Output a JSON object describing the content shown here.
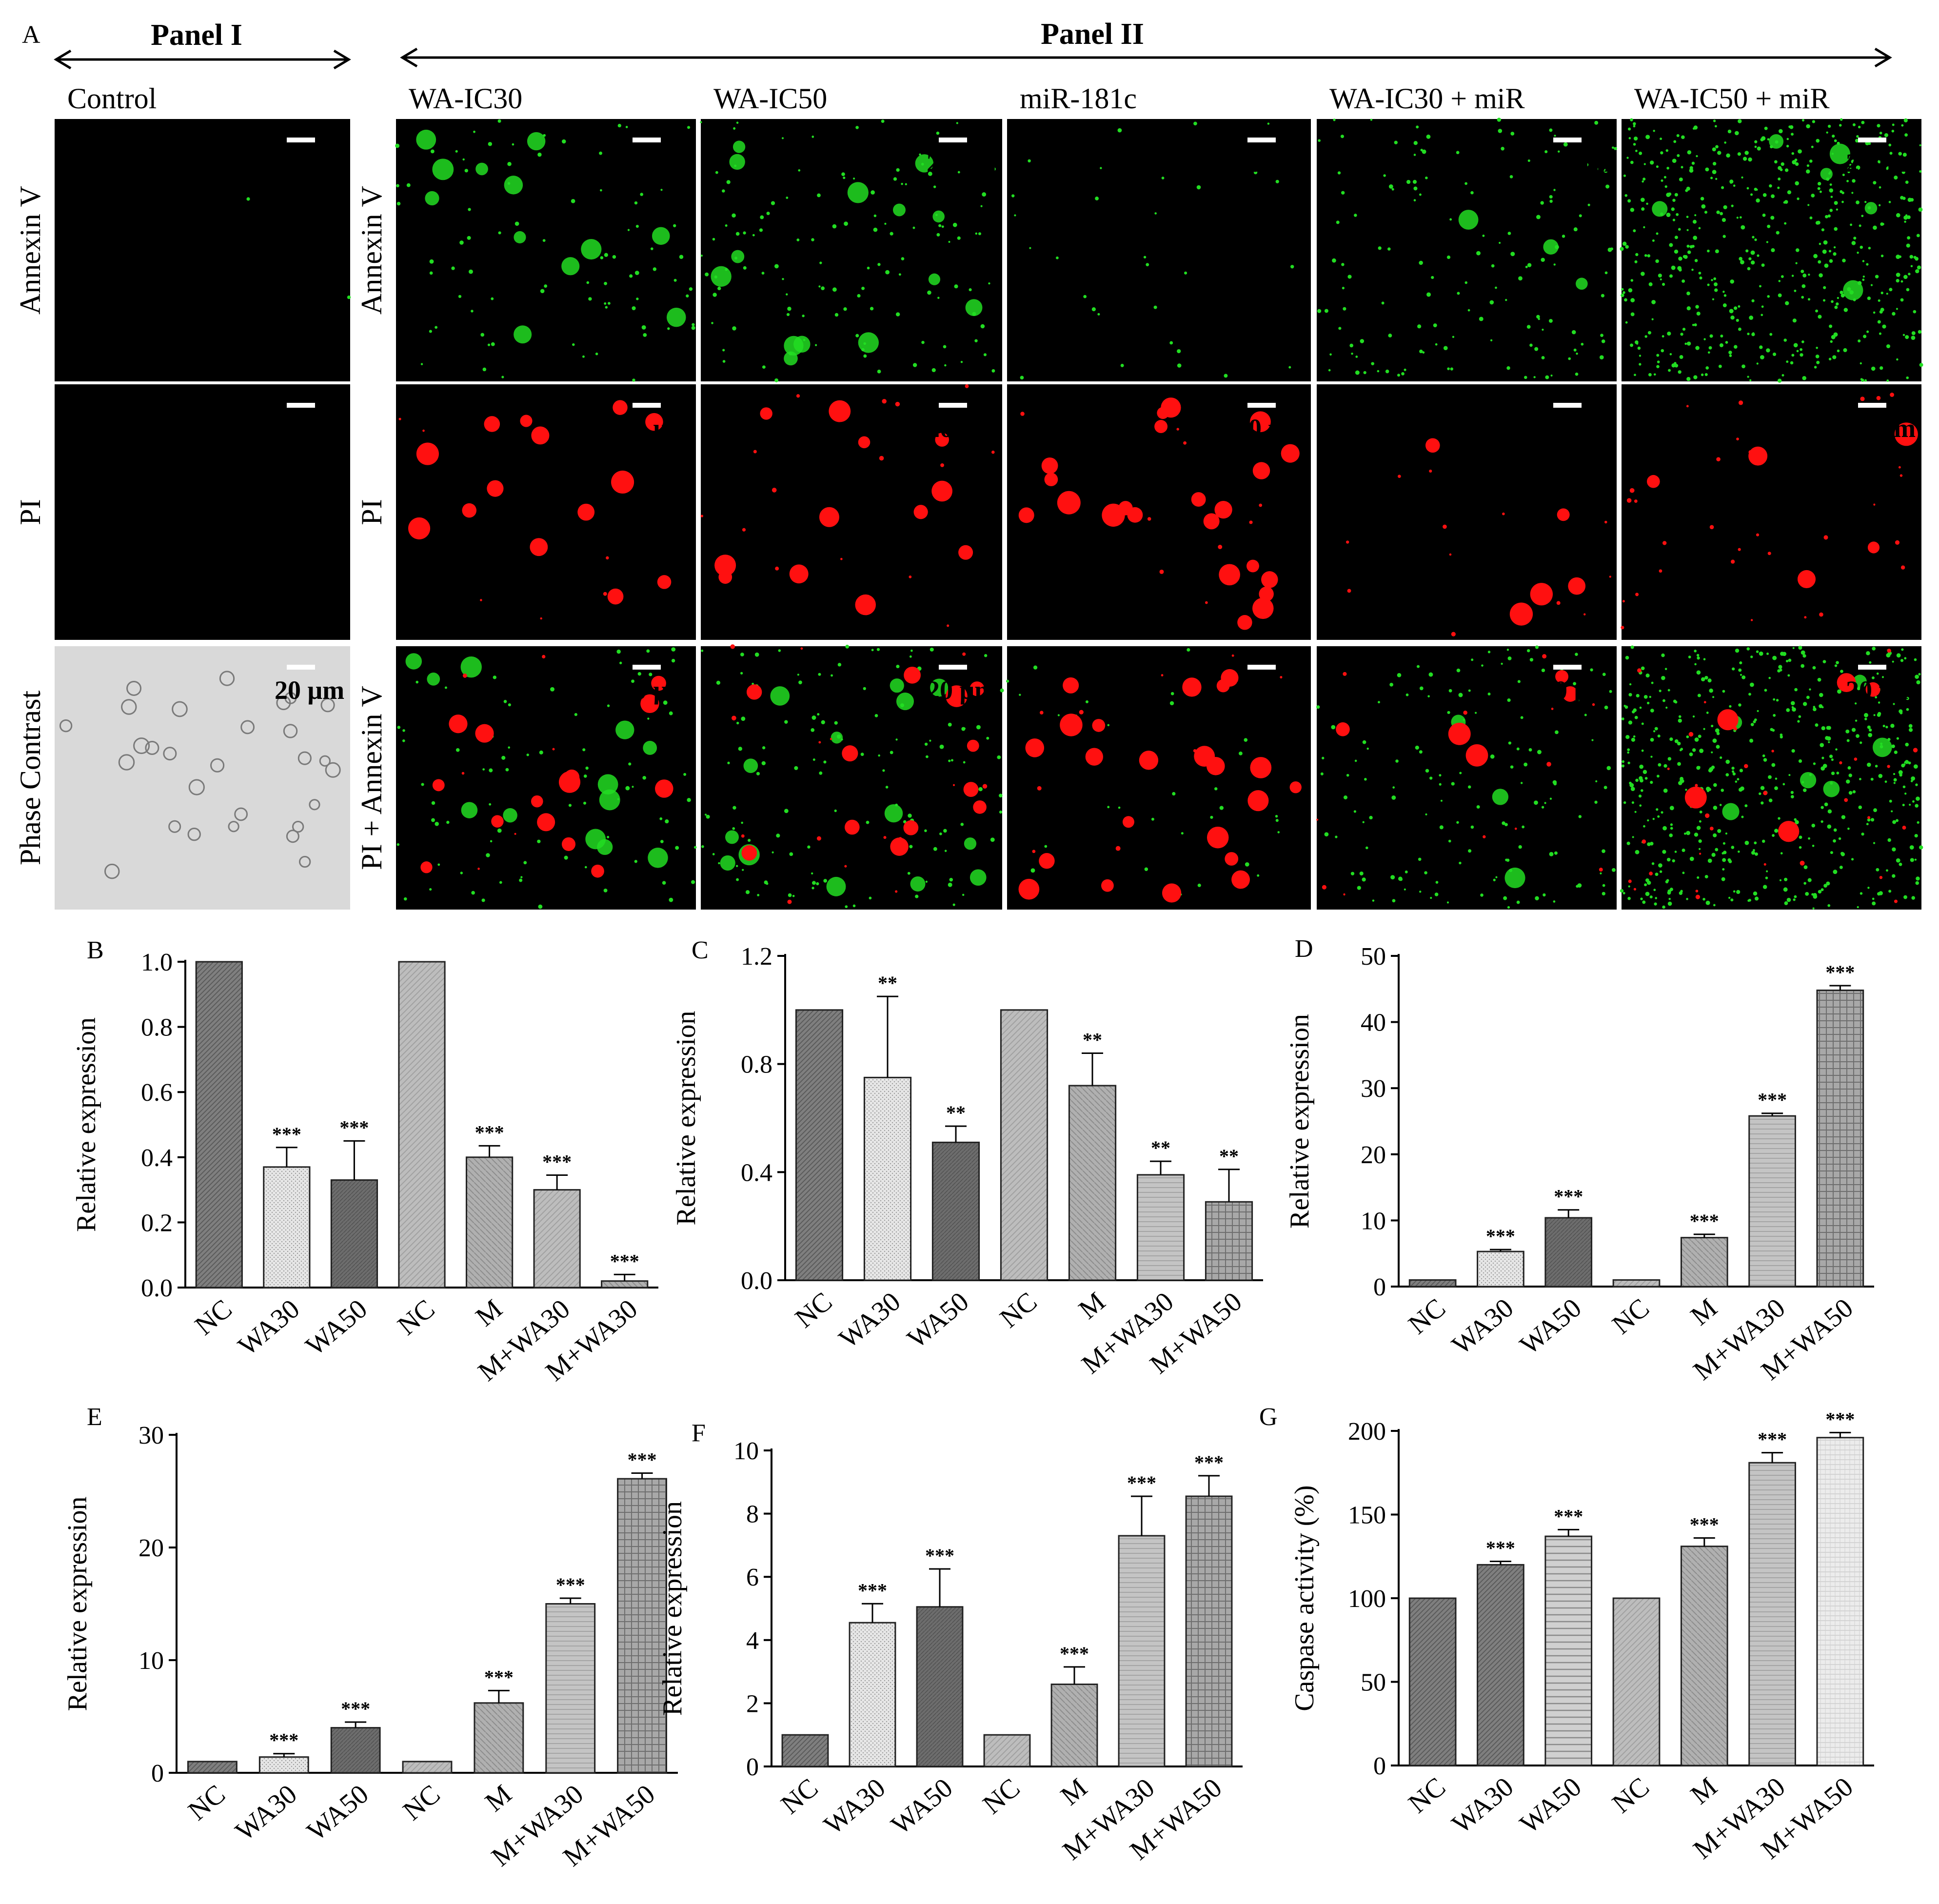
{
  "figure": {
    "panel_a": {
      "letter": "A",
      "panel_i_title": "Panel I",
      "panel_ii_title": "Panel II",
      "columns": [
        "Control",
        "WA-IC30",
        "WA-IC50",
        "miR-181c",
        "WA-IC30 + miR",
        "WA-IC50 + miR"
      ],
      "rows_panel_i": [
        "Annexin V",
        "PI",
        "Phase Contrast"
      ],
      "rows_panel_ii": [
        "Annexin V",
        "PI",
        "PI + Annexin V"
      ],
      "scale_bar_label": "20 μm",
      "colors": {
        "annexin": "#22dd22",
        "pi": "#ff1010",
        "background": "#000000",
        "phase_bg": "#d9d9d9"
      }
    }
  },
  "chart_data": [
    {
      "id": "B",
      "type": "bar",
      "categories": [
        "NC",
        "WA30",
        "WA50",
        "NC",
        "M",
        "M+WA30",
        "M+WA30"
      ],
      "values": [
        1.0,
        0.37,
        0.33,
        1.0,
        0.4,
        0.3,
        0.02
      ],
      "errors": [
        0,
        0.06,
        0.12,
        0,
        0.035,
        0.045,
        0.02
      ],
      "significance": [
        "",
        "***",
        "***",
        "",
        "***",
        "***",
        "***"
      ],
      "ylabel": "Relative expression",
      "ylim": [
        0,
        1.0
      ],
      "yticks": [
        "0.0",
        "0.2",
        "0.4",
        "0.6",
        "0.8",
        "1.0"
      ]
    },
    {
      "id": "C",
      "type": "bar",
      "categories": [
        "NC",
        "WA30",
        "WA50",
        "NC",
        "M",
        "M+WA30",
        "M+WA50"
      ],
      "values": [
        1.0,
        0.75,
        0.51,
        1.0,
        0.72,
        0.39,
        0.29
      ],
      "errors": [
        0,
        0.3,
        0.06,
        0,
        0.12,
        0.05,
        0.12
      ],
      "significance": [
        "",
        "**",
        "**",
        "",
        "**",
        "**",
        "**"
      ],
      "ylabel": "Relative expression",
      "ylim": [
        0,
        1.2
      ],
      "yticks": [
        "0.0",
        "0.4",
        "0.8",
        "1.2"
      ]
    },
    {
      "id": "D",
      "type": "bar",
      "categories": [
        "NC",
        "WA30",
        "WA50",
        "NC",
        "M",
        "M+WA30",
        "M+WA50"
      ],
      "values": [
        1.0,
        5.3,
        10.4,
        1.0,
        7.4,
        25.8,
        44.8
      ],
      "errors": [
        0,
        0.3,
        1.2,
        0,
        0.5,
        0.4,
        0.7
      ],
      "significance": [
        "",
        "***",
        "***",
        "",
        "***",
        "***",
        "***"
      ],
      "ylabel": "Relative expression",
      "ylim": [
        0,
        50
      ],
      "yticks": [
        "0",
        "10",
        "20",
        "30",
        "40",
        "50"
      ]
    },
    {
      "id": "E",
      "type": "bar",
      "categories": [
        "NC",
        "WA30",
        "WA50",
        "NC",
        "M",
        "M+WA30",
        "M+WA50"
      ],
      "values": [
        1.0,
        1.4,
        4.0,
        1.0,
        6.2,
        15.0,
        26.1
      ],
      "errors": [
        0,
        0.3,
        0.5,
        0,
        1.1,
        0.5,
        0.5
      ],
      "significance": [
        "",
        "***",
        "***",
        "",
        "***",
        "***",
        "***"
      ],
      "ylabel": "Relative expression",
      "ylim": [
        0,
        30
      ],
      "yticks": [
        "0",
        "10",
        "20",
        "30"
      ]
    },
    {
      "id": "F",
      "type": "bar",
      "categories": [
        "NC",
        "WA30",
        "WA50",
        "NC",
        "M",
        "M+WA30",
        "M+WA50"
      ],
      "values": [
        1.0,
        4.55,
        5.05,
        1.0,
        2.6,
        7.3,
        8.55
      ],
      "errors": [
        0,
        0.6,
        1.2,
        0,
        0.55,
        1.25,
        0.65
      ],
      "significance": [
        "",
        "***",
        "***",
        "",
        "***",
        "***",
        "***"
      ],
      "ylabel": "Relative expression",
      "ylim": [
        0,
        10
      ],
      "yticks": [
        "0",
        "2",
        "4",
        "6",
        "8",
        "10"
      ]
    },
    {
      "id": "G",
      "type": "bar",
      "categories": [
        "NC",
        "WA30",
        "WA50",
        "NC",
        "M",
        "M+WA30",
        "M+WA50"
      ],
      "values": [
        100,
        120,
        137,
        100,
        131,
        181,
        196
      ],
      "errors": [
        0,
        2,
        4,
        0,
        5,
        6,
        3
      ],
      "significance": [
        "",
        "***",
        "***",
        "",
        "***",
        "***",
        "***"
      ],
      "ylabel": "Caspase activity (%)",
      "ylim": [
        0,
        200
      ],
      "yticks": [
        "0",
        "50",
        "100",
        "150",
        "200"
      ]
    }
  ]
}
